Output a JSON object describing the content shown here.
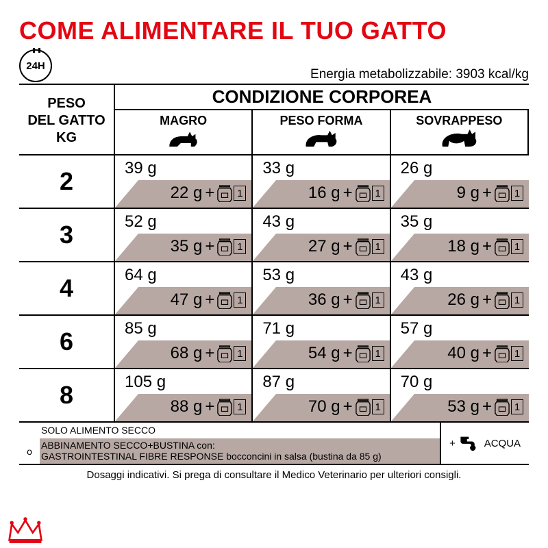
{
  "title": "COME ALIMENTARE IL TUO GATTO",
  "badge24h": "24H",
  "energy": "Energia metabolizzabile: 3903 kcal/kg",
  "headers": {
    "peso_line1": "PESO",
    "peso_line2": "DEL GATTO",
    "peso_line3": "KG",
    "condizione": "CONDIZIONE CORPOREA",
    "cols": [
      "MAGRO",
      "PESO FORMA",
      "SOVRAPPESO"
    ]
  },
  "rows": [
    {
      "w": "2",
      "cells": [
        {
          "dry": "39 g",
          "mix": "22 g"
        },
        {
          "dry": "33 g",
          "mix": "16 g"
        },
        {
          "dry": "26 g",
          "mix": "9 g"
        }
      ]
    },
    {
      "w": "3",
      "cells": [
        {
          "dry": "52 g",
          "mix": "35 g"
        },
        {
          "dry": "43 g",
          "mix": "27 g"
        },
        {
          "dry": "35 g",
          "mix": "18 g"
        }
      ]
    },
    {
      "w": "4",
      "cells": [
        {
          "dry": "64 g",
          "mix": "47 g"
        },
        {
          "dry": "53 g",
          "mix": "36 g"
        },
        {
          "dry": "43 g",
          "mix": "26 g"
        }
      ]
    },
    {
      "w": "6",
      "cells": [
        {
          "dry": "85 g",
          "mix": "68 g"
        },
        {
          "dry": "71 g",
          "mix": "54 g"
        },
        {
          "dry": "57 g",
          "mix": "40 g"
        }
      ]
    },
    {
      "w": "8",
      "cells": [
        {
          "dry": "105 g",
          "mix": "88 g"
        },
        {
          "dry": "87 g",
          "mix": "70 g"
        },
        {
          "dry": "70 g",
          "mix": "53 g"
        }
      ]
    }
  ],
  "footer": {
    "o": "o",
    "solo": "SOLO ALIMENTO SECCO",
    "abbinamento": "ABBINAMENTO SECCO+BUSTINA con:",
    "product": "GASTROINTESTINAL FIBRE RESPONSE bocconcini in salsa (bustina da 85 g)",
    "plus": "+",
    "acqua": "ACQUA"
  },
  "pouch_count": "1",
  "disclaimer": "Dosaggi indicativi. Si prega di consultare il Medico Veterinario per ulteriori consigli.",
  "colors": {
    "brand_red": "#e30613",
    "band": "#b7a8a3"
  }
}
